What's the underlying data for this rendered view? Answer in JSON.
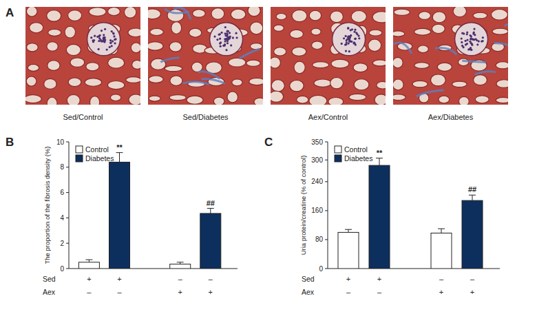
{
  "panel_a": {
    "label": "A",
    "captions": [
      "Sed/Control",
      "Sed/Diabetes",
      "Aex/Control",
      "Aex/Diabetes"
    ]
  },
  "chart_data": [
    {
      "panel": "B",
      "type": "bar",
      "y_label": "The proportion of the fibrosis density (%)",
      "categories": [
        null,
        null,
        null,
        null
      ],
      "series": [
        {
          "name": "Control",
          "color": "#ffffff",
          "values": [
            0.5,
            null,
            0.35,
            null
          ],
          "errors": [
            0.2,
            null,
            0.15,
            null
          ]
        },
        {
          "name": "Diabetes",
          "color": "#0d2f5e",
          "values": [
            null,
            8.4,
            null,
            4.35
          ],
          "errors": [
            null,
            0.75,
            null,
            0.4
          ],
          "annotations": [
            null,
            "**",
            null,
            "##"
          ]
        }
      ],
      "ylim": [
        0,
        10
      ],
      "yticks": [
        0,
        2,
        4,
        6,
        8,
        10
      ],
      "legend": "upper left",
      "factors": [
        {
          "label": "Sed",
          "levels": [
            "+",
            "+",
            "–",
            "–"
          ]
        },
        {
          "label": "Aex",
          "levels": [
            "–",
            "–",
            "+",
            "+"
          ]
        }
      ]
    },
    {
      "panel": "C",
      "type": "bar",
      "y_label": "Uria protein/creatine (% of control)",
      "categories": [
        null,
        null,
        null,
        null
      ],
      "series": [
        {
          "name": "Control",
          "color": "#ffffff",
          "values": [
            100,
            null,
            98,
            null
          ],
          "errors": [
            8,
            null,
            12,
            null
          ]
        },
        {
          "name": "Diabetes",
          "color": "#0d2f5e",
          "values": [
            null,
            285,
            null,
            188
          ],
          "errors": [
            null,
            20,
            null,
            15
          ],
          "annotations": [
            null,
            "**",
            null,
            "##"
          ]
        }
      ],
      "ylim": [
        0,
        350
      ],
      "yticks": [
        0,
        80,
        160,
        240,
        300,
        350
      ],
      "legend": "upper left",
      "factors": [
        {
          "label": "Sed",
          "levels": [
            "+",
            "+",
            "–",
            "–"
          ]
        },
        {
          "label": "Aex",
          "levels": [
            "–",
            "–",
            "+",
            "+"
          ]
        }
      ]
    }
  ]
}
